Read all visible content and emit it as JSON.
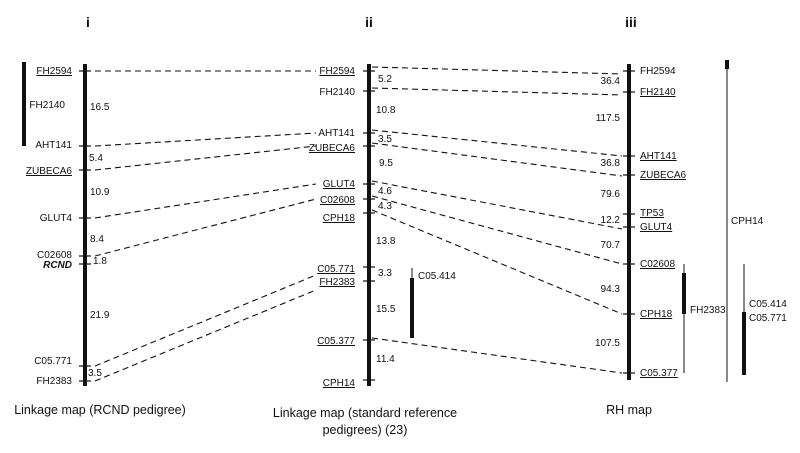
{
  "maps": {
    "m1": {
      "header": "i",
      "caption": "Linkage map (RCND pedigree)",
      "markers": {
        "FH2594": "FH2594",
        "FH2140": "FH2140",
        "AHT141": "AHT141",
        "ZUBECA6": "ZUBECA6",
        "GLUT4": "GLUT4",
        "C02608": "C02608",
        "RCND": "RCND",
        "C05771": "C05.771",
        "FH2383": "FH2383"
      },
      "distances": [
        "16.5",
        "5.4",
        "10.9",
        "8.4",
        "1.8",
        "21.9",
        "3.5"
      ]
    },
    "m2": {
      "header": "ii",
      "caption_line1": "Linkage map (standard reference",
      "caption_line2": "pedigrees) (23)",
      "markers": {
        "FH2594": "FH2594",
        "FH2140": "FH2140",
        "AHT141": "AHT141",
        "ZUBECA6": "ZUBECA6",
        "GLUT4": "GLUT4",
        "C02608": "C02608",
        "CPH18": "CPH18",
        "C05771": "C05.771",
        "FH2383": "FH2383",
        "C05377": "C05.377",
        "CPH14": "CPH14",
        "C05414": "C05.414"
      },
      "distances": [
        "5.2",
        "10.8",
        "3.5",
        "9.5",
        "4.6",
        "4.3",
        "13.8",
        "3.3",
        "15.5",
        "11.4"
      ]
    },
    "m3": {
      "header": "iii",
      "caption": "RH map",
      "markers": {
        "FH2594": "FH2594",
        "FH2140": "FH2140",
        "AHT141": "AHT141",
        "ZUBECA6": "ZUBECA6",
        "TP53": "TP53",
        "GLUT4": "GLUT4",
        "C02608": "C02608",
        "CPH18": "CPH18",
        "C05377": "C05.377",
        "FH2383": "FH2383",
        "CPH14": "CPH14",
        "C05414": "C05.414",
        "C05771": "C05.771"
      },
      "distances": [
        "36.4",
        "117.5",
        "36.8",
        "79.6",
        "12.2",
        "70.7",
        "94.3",
        "107.5"
      ]
    }
  }
}
